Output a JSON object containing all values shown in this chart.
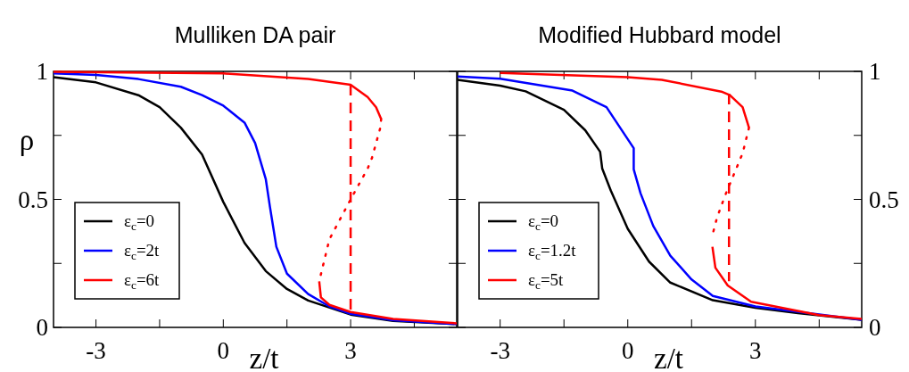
{
  "chart_data": [
    {
      "type": "line",
      "title": "Mulliken DA pair",
      "xlabel": "z/t",
      "ylabel": "ρ",
      "xlim": [
        -4,
        5.5
      ],
      "xticks": [
        -3,
        {
          "value": -1.5,
          "label": null
        },
        0,
        {
          "value": 1.5,
          "label": null
        },
        3,
        {
          "value": 4.5,
          "label": null
        }
      ],
      "ylim": [
        0,
        1
      ],
      "yticks": [
        0,
        {
          "value": 0.25,
          "label": null
        },
        0.5,
        {
          "value": 0.75,
          "label": null
        },
        1
      ],
      "legend": "bottom left",
      "series": [
        {
          "name": "ε$_{c}$=0",
          "color": "#000000",
          "x": [
            -4,
            -3,
            -2,
            -1.5,
            -1,
            -0.5,
            0,
            0.5,
            1,
            1.5,
            2,
            3,
            4,
            5.5
          ],
          "values": [
            0.977,
            0.957,
            0.907,
            0.86,
            0.78,
            0.675,
            0.49,
            0.33,
            0.22,
            0.15,
            0.105,
            0.05,
            0.025,
            0.013
          ]
        },
        {
          "name": "ε$_{c}$=2t",
          "color": "#0000ff",
          "x": [
            -4,
            -3,
            -2,
            -1,
            -0.5,
            0,
            0.5,
            0.75,
            1,
            1.1,
            1.25,
            1.5,
            2,
            2.5,
            3,
            4,
            5.5
          ],
          "values": [
            0.992,
            0.986,
            0.97,
            0.94,
            0.907,
            0.866,
            0.8,
            0.72,
            0.58,
            0.47,
            0.315,
            0.21,
            0.13,
            0.082,
            0.053,
            0.028,
            0.013
          ]
        },
        {
          "name": "ε$_{c}$=6t",
          "color": "#ff0000",
          "x": [
            -4,
            0,
            2,
            3,
            3.4,
            3.6,
            3.72
          ],
          "values": [
            0.998,
            0.992,
            0.97,
            0.948,
            0.9,
            0.86,
            0.814
          ]
        },
        {
          "color": "#ff0000",
          "line_style": "dotted",
          "x": [
            3.72,
            3.7,
            3.5,
            3.4,
            3,
            2.5,
            2.26
          ],
          "values": [
            0.814,
            0.78,
            0.66,
            0.62,
            0.5,
            0.344,
            0.18
          ]
        },
        {
          "color": "#ff0000",
          "x": [
            2.26,
            2.3,
            2.5,
            3,
            4,
            5.5
          ],
          "values": [
            0.18,
            0.117,
            0.088,
            0.06,
            0.033,
            0.016
          ]
        },
        {
          "color": "#ff0000",
          "line_style": "dashed",
          "x": [
            3,
            3
          ],
          "values": [
            0.948,
            0.065
          ]
        }
      ]
    },
    {
      "type": "line",
      "title": "Modified Hubbard model",
      "xlabel": "z/t",
      "xlim": [
        -4,
        5.5
      ],
      "xticks": [
        -3,
        {
          "value": -1.5,
          "label": null
        },
        0,
        {
          "value": 1.5,
          "label": null
        },
        3,
        {
          "value": 4.5,
          "label": null
        }
      ],
      "y2lim": [
        0,
        1
      ],
      "y2ticks": [
        0,
        {
          "value": 0.25,
          "label": null
        },
        0.5,
        {
          "value": 0.75,
          "label": null
        },
        1
      ],
      "legend": "bottom left",
      "series": [
        {
          "name": "ε$_{c}$=0",
          "color": "#000000",
          "axis": "y2",
          "x": [
            -4,
            -3,
            -2.4,
            -1.5,
            -1,
            -0.65,
            -0.6,
            -0.4,
            0,
            0.5,
            1,
            2,
            3,
            4,
            5.5
          ],
          "values": [
            0.967,
            0.944,
            0.922,
            0.85,
            0.77,
            0.686,
            0.62,
            0.535,
            0.385,
            0.257,
            0.175,
            0.106,
            0.077,
            0.056,
            0.03
          ]
        },
        {
          "name": "ε$_{c}$=1.2t",
          "color": "#0000ff",
          "axis": "y2",
          "x": [
            -4,
            -3,
            -1.3,
            -0.5,
            -0.1,
            0.14,
            0.14,
            0.3,
            0.6,
            1,
            1.5,
            2,
            3,
            5.5
          ],
          "values": [
            0.98,
            0.971,
            0.925,
            0.86,
            0.76,
            0.7,
            0.617,
            0.524,
            0.396,
            0.28,
            0.187,
            0.123,
            0.082,
            0.03
          ]
        },
        {
          "name": "ε$_{c}$=5t",
          "color": "#ff0000",
          "axis": "y2",
          "x": [
            -3,
            0,
            0.8,
            2.2,
            2.4,
            2.7,
            2.85
          ],
          "values": [
            0.994,
            0.977,
            0.967,
            0.921,
            0.907,
            0.86,
            0.78
          ]
        },
        {
          "color": "#ff0000",
          "axis": "y2",
          "line_style": "dotted",
          "x": [
            2.85,
            2.7,
            2.5,
            2.3,
            2.1,
            1.99
          ],
          "values": [
            0.78,
            0.68,
            0.6,
            0.52,
            0.43,
            0.36
          ]
        },
        {
          "color": "#ff0000",
          "axis": "y2",
          "x": [
            1.99,
            2.06,
            2.35,
            2.9,
            4.5,
            5.5
          ],
          "values": [
            0.315,
            0.233,
            0.164,
            0.1,
            0.048,
            0.033
          ]
        },
        {
          "color": "#ff0000",
          "axis": "y2",
          "line_style": "dashed",
          "x": [
            2.38,
            2.38
          ],
          "values": [
            0.913,
            0.18
          ]
        }
      ]
    }
  ]
}
